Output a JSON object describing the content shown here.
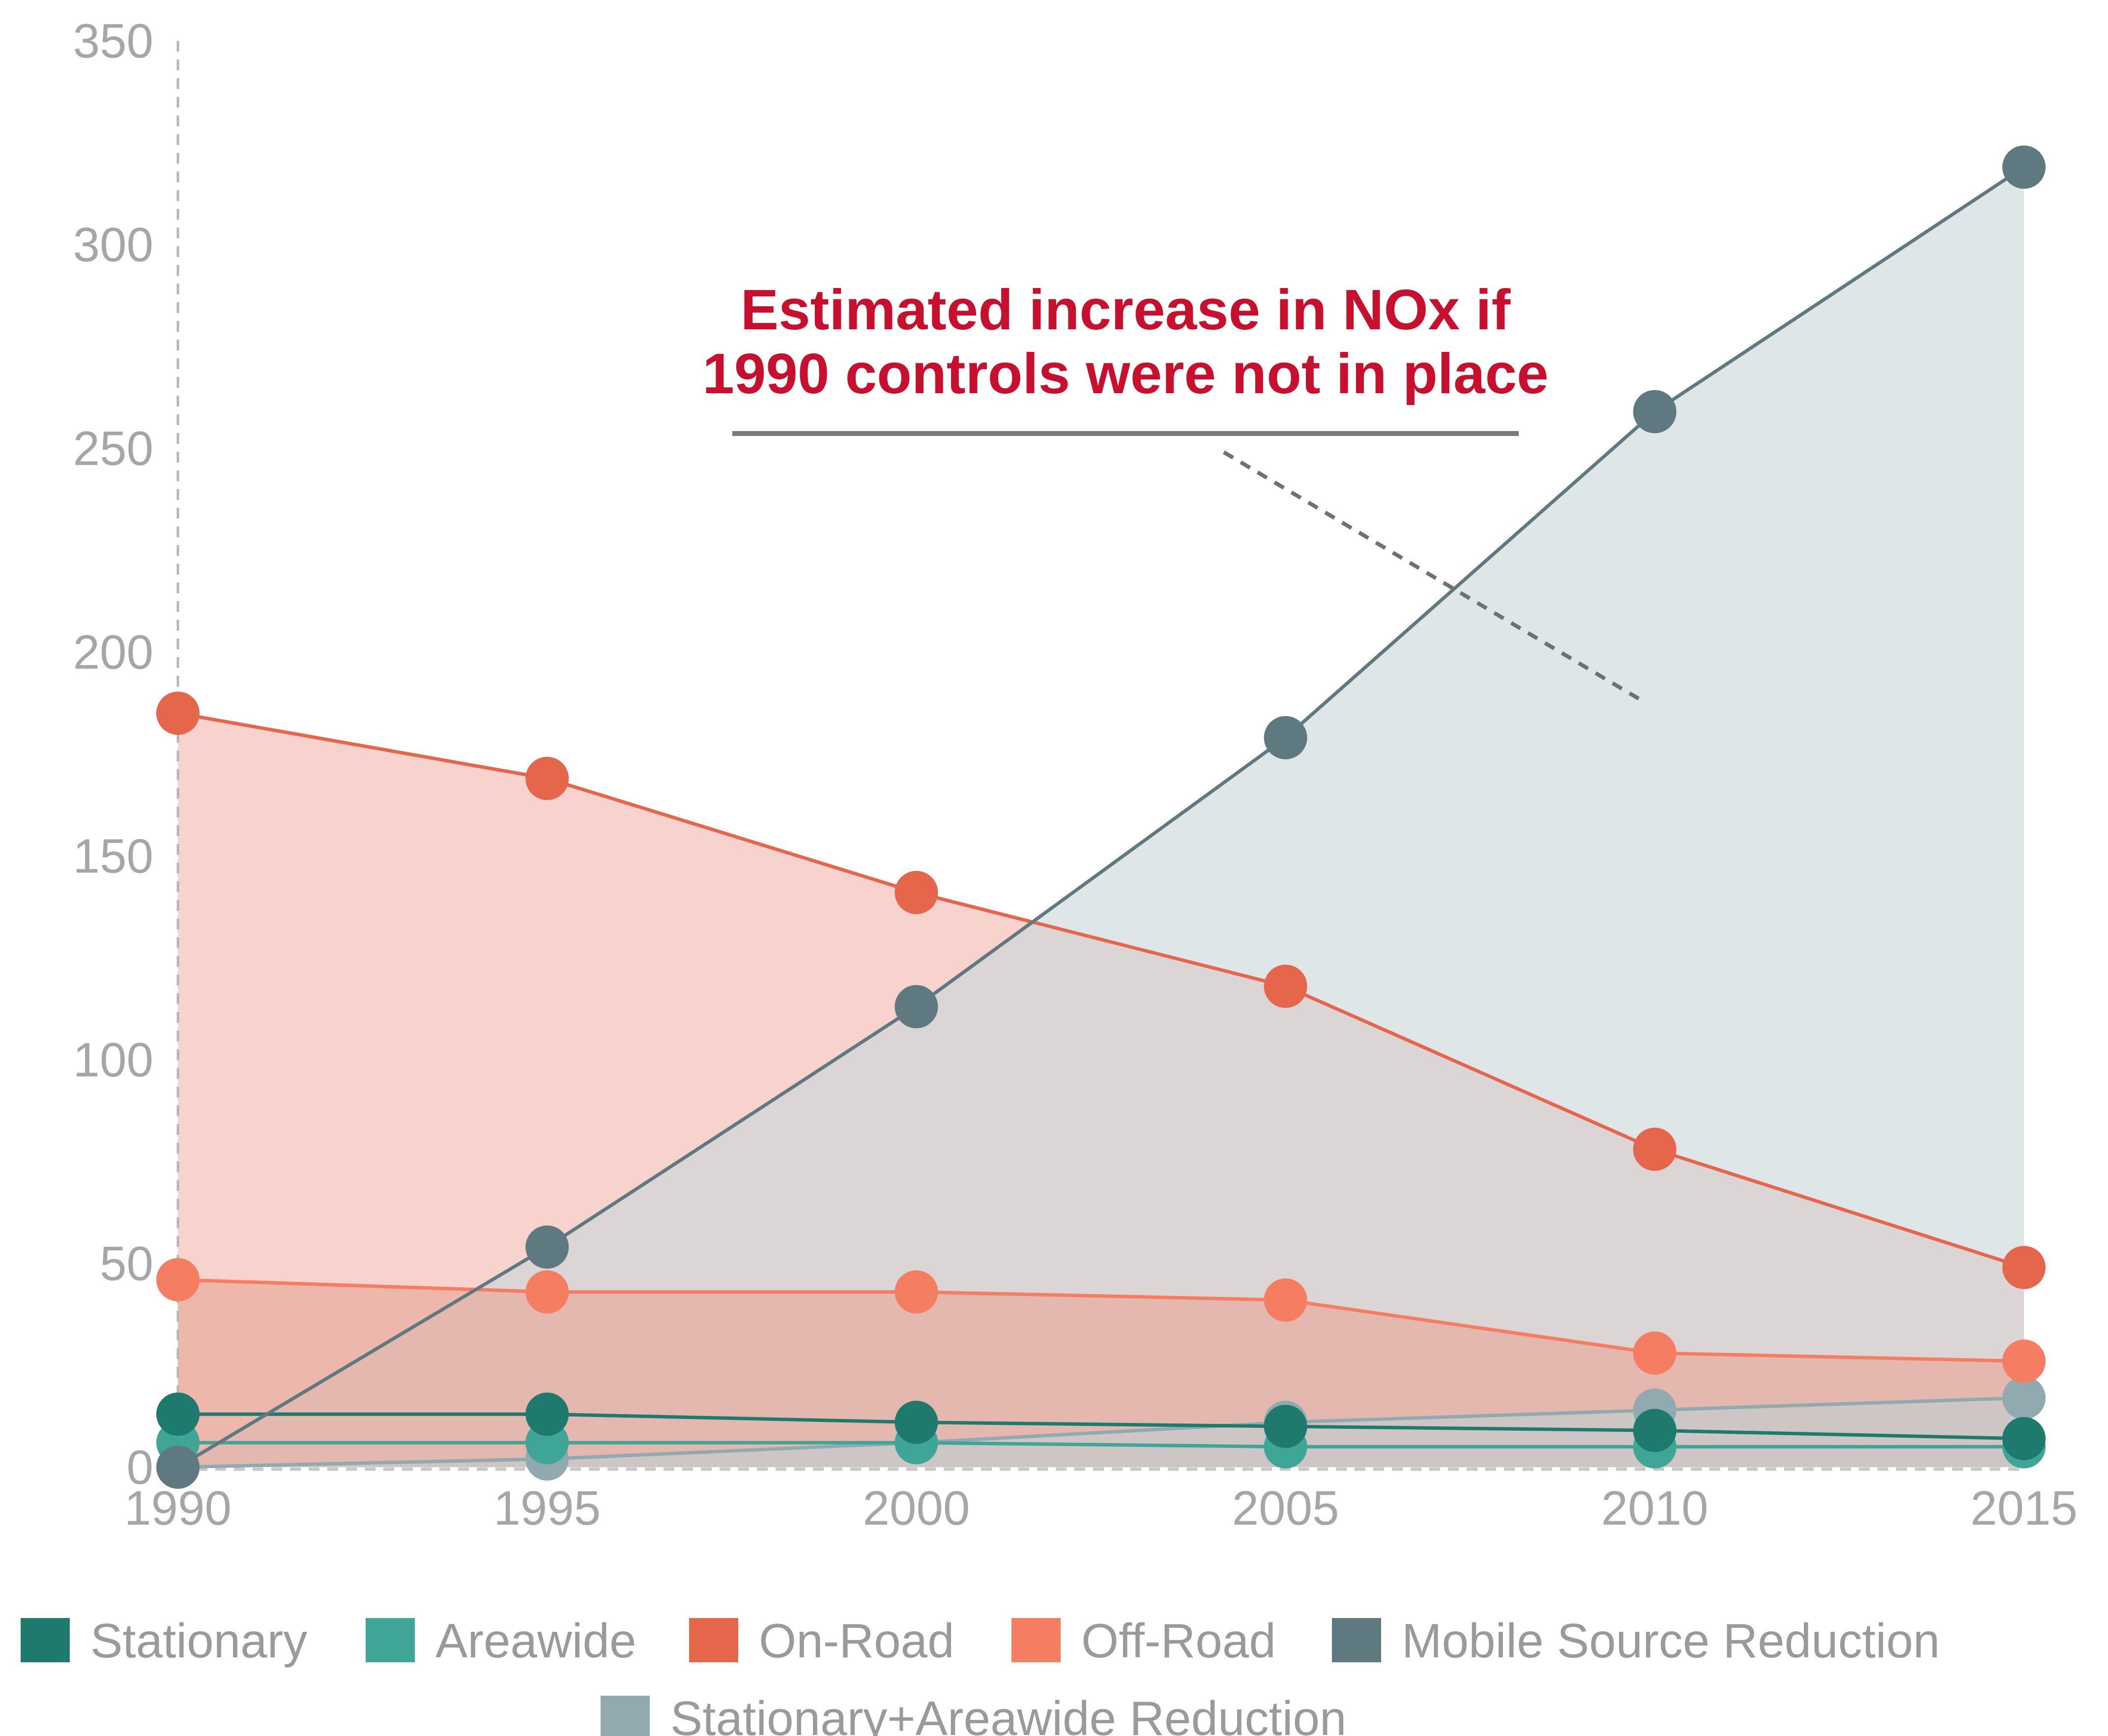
{
  "chart_data": {
    "type": "area",
    "title": "",
    "xlabel": "",
    "ylabel": "",
    "x": [
      1990,
      1995,
      2000,
      2005,
      2010,
      2015
    ],
    "xlim": [
      1990,
      2015
    ],
    "ylim": [
      0,
      350
    ],
    "y_ticks": [
      0,
      50,
      100,
      150,
      200,
      250,
      300,
      350
    ],
    "grid": false,
    "legend_position": "bottom",
    "annotation": {
      "lines": [
        "Estimated increase in NOx if",
        "1990 controls were not in place"
      ],
      "color": "#c8102e"
    },
    "series": [
      {
        "name": "Stationary",
        "color": "#1d7a6c",
        "fill": false,
        "values": [
          13,
          13,
          11,
          10,
          9,
          7
        ]
      },
      {
        "name": "Areawide",
        "color": "#3fa597",
        "fill": false,
        "values": [
          6,
          6,
          6,
          5,
          5,
          5
        ]
      },
      {
        "name": "On-Road",
        "color": "#e5664a",
        "fill": true,
        "fill_color": "#f4b7ac",
        "values": [
          185,
          169,
          141,
          118,
          78,
          49
        ]
      },
      {
        "name": "Off-Road",
        "color": "#f47d62",
        "fill": true,
        "fill_color": "#e9a696",
        "values": [
          46,
          43,
          43,
          41,
          28,
          26
        ]
      },
      {
        "name": "Mobile Source Reduction",
        "color": "#5e7a80",
        "fill": true,
        "fill_color": "#ccd6da",
        "values": [
          0,
          54,
          113,
          179,
          259,
          319
        ]
      },
      {
        "name": "Stationary+Areawide Reduction",
        "color": "#90aab0",
        "fill": true,
        "fill_color": "#bfcfd2",
        "values": [
          0,
          2,
          6,
          11,
          14,
          17
        ]
      }
    ]
  }
}
